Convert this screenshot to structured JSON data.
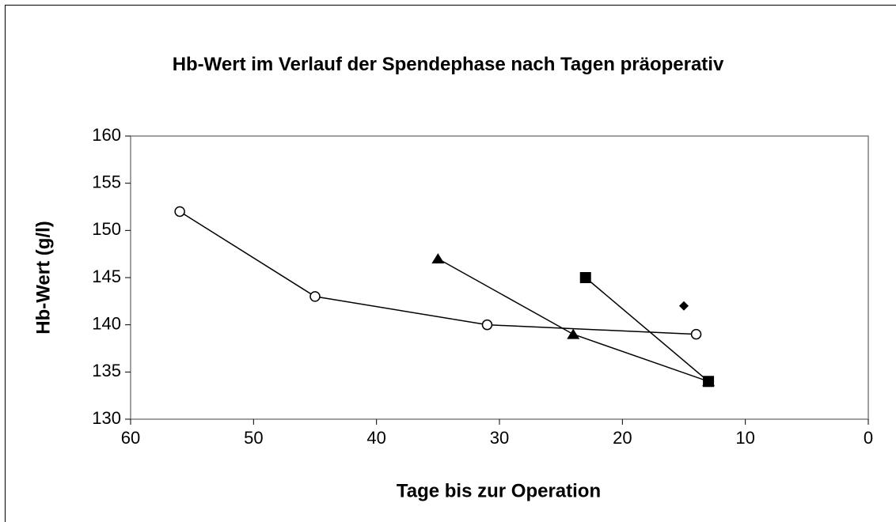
{
  "chart_data": {
    "type": "line",
    "title": "Hb-Wert im Verlauf der Spendephase nach Tagen präoperativ",
    "x_label": "Tage bis zur Operation",
    "y_label": "Hb-Wert (g/l)",
    "xlim": [
      60,
      0
    ],
    "xticks": [
      60,
      50,
      40,
      30,
      20,
      10,
      0
    ],
    "ylim": [
      130,
      160
    ],
    "yticks": [
      130,
      135,
      140,
      145,
      150,
      155,
      160
    ],
    "grid": false,
    "series": [
      {
        "color": "#000000",
        "marker": "circle-open",
        "x": [
          56,
          45,
          31,
          14
        ],
        "values": [
          152,
          143,
          140,
          139
        ]
      },
      {
        "color": "#000000",
        "marker": "triangle",
        "x": [
          35,
          24,
          13
        ],
        "values": [
          147,
          139,
          134
        ]
      },
      {
        "color": "#000000",
        "marker": "square",
        "x": [
          23,
          13
        ],
        "values": [
          145,
          134
        ]
      },
      {
        "color": "#000000",
        "marker": "diamond",
        "x": [
          15
        ],
        "values": [
          142
        ]
      }
    ]
  }
}
